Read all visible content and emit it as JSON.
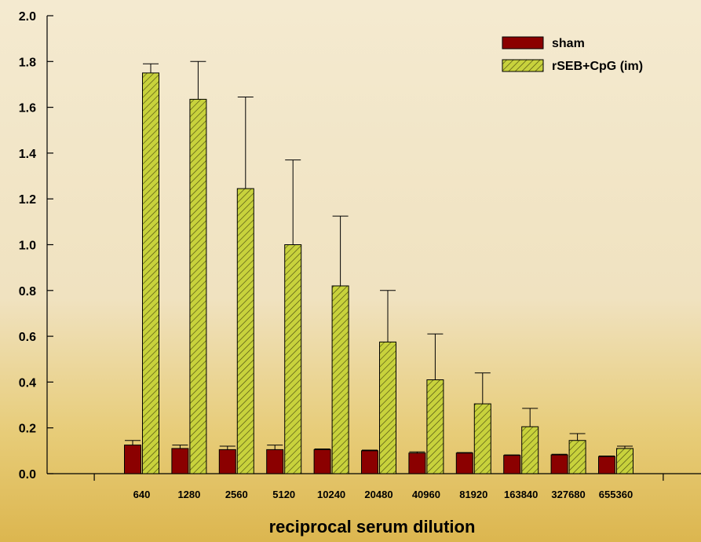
{
  "chart_data": {
    "type": "bar",
    "categories": [
      "640",
      "1280",
      "2560",
      "5120",
      "10240",
      "20480",
      "40960",
      "81920",
      "163840",
      "327680",
      "655360"
    ],
    "series": [
      {
        "name": "sham",
        "color": "#8b0000",
        "pattern": "solid",
        "values": [
          0.125,
          0.11,
          0.105,
          0.105,
          0.105,
          0.1,
          0.09,
          0.09,
          0.08,
          0.082,
          0.075
        ],
        "error_plus": [
          0.02,
          0.015,
          0.015,
          0.02,
          0.003,
          0.003,
          0.005,
          0.002,
          0.002,
          0.003,
          0.002
        ]
      },
      {
        "name": "rSEB+CpG (im)",
        "color": "#b8c43a",
        "pattern": "hatched",
        "values": [
          1.75,
          1.635,
          1.245,
          1.0,
          0.82,
          0.575,
          0.41,
          0.305,
          0.205,
          0.145,
          0.11
        ],
        "error_plus": [
          0.04,
          0.165,
          0.4,
          0.37,
          0.305,
          0.225,
          0.2,
          0.135,
          0.08,
          0.03,
          0.01
        ]
      }
    ],
    "xlabel": "reciprocal serum dilution",
    "ylabel": "",
    "ylim": [
      0,
      2.0
    ],
    "yticks": [
      "0.0",
      "0.2",
      "0.4",
      "0.6",
      "0.8",
      "1.0",
      "1.2",
      "1.4",
      "1.6",
      "1.8",
      "2.0"
    ],
    "grid": false,
    "legend_position": "top-right"
  }
}
